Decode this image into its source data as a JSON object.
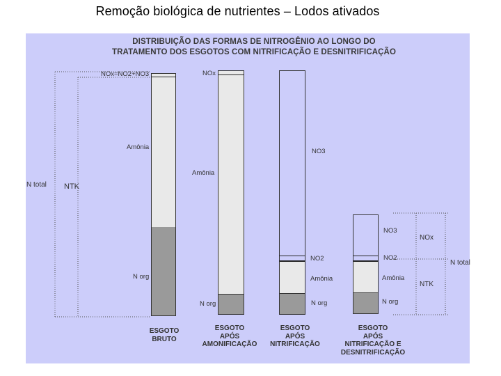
{
  "title": "Remoção biológica de nutrientes – Lodos ativados",
  "diagram": {
    "heading_line1": "DISTRIBUIÇÃO DAS FORMAS DE NITROGÊNIO AO LONGO DO",
    "heading_line2": "TRATAMENTO DOS ESGOTOS COM NITRIFICAÇÃO E DESNITRIFICAÇÃO",
    "left_labels": {
      "n_total": "N total",
      "ntk": "NTK"
    },
    "right_labels": {
      "nox": "NOx",
      "n_total": "N total",
      "ntk": "NTK"
    },
    "columns": [
      {
        "caption_line1": "ESGOTO",
        "caption_line2": "BRUTO",
        "caption_line3": "",
        "labels": {
          "top": "NOx=NO2+NO3",
          "middle": "Amônia",
          "bottom": "N org"
        }
      },
      {
        "caption_line1": "ESGOTO",
        "caption_line2": "APÓS",
        "caption_line3": "AMONIFICAÇÃO",
        "labels": {
          "top": "NOx",
          "middle": "Amônia",
          "bottom": "N org"
        }
      },
      {
        "caption_line1": "ESGOTO",
        "caption_line2": "APÓS",
        "caption_line3": "NITRIFICAÇÃO",
        "labels": {
          "top": "NO3",
          "middle1": "NO2",
          "middle2": "Amônia",
          "bottom": "N org"
        }
      },
      {
        "caption_line1": "ESGOTO",
        "caption_line2": "APÓS",
        "caption_line3": "NITRIFICAÇÃO E",
        "caption_line4": "DESNITRIFICAÇÃO",
        "labels": {
          "top": "NO3",
          "middle1": "NO2",
          "middle2": "Amônia",
          "bottom": "N org"
        }
      }
    ]
  }
}
